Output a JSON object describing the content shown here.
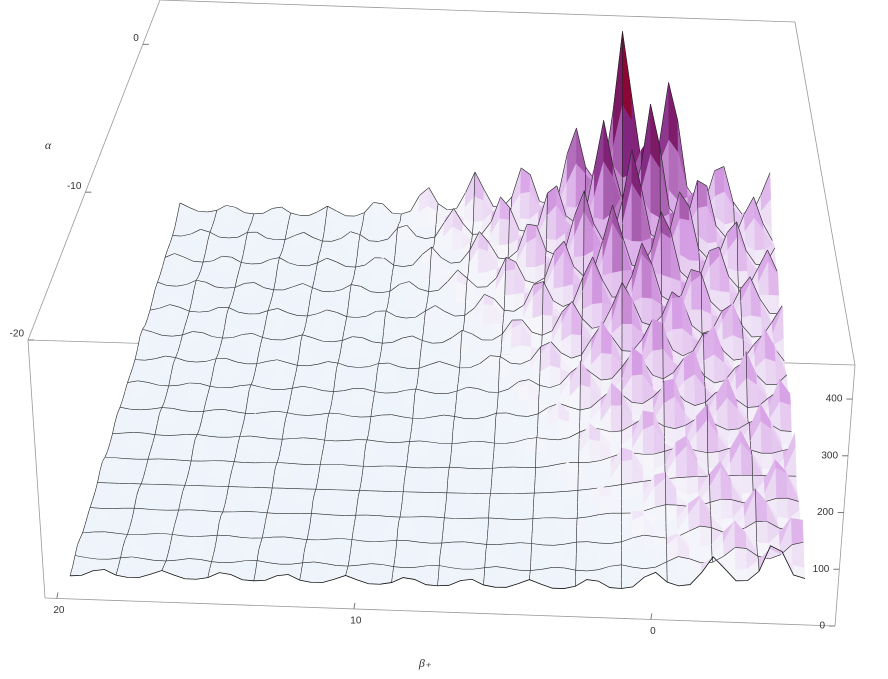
{
  "chart_data": {
    "type": "surface3d",
    "xlabel": "β₊",
    "ylabel": "α",
    "xlim": [
      20.4,
      -6.2
    ],
    "xticks": [
      20,
      10,
      0
    ],
    "ylim": [
      -20,
      3
    ],
    "yticks": [
      0,
      -10,
      -20
    ],
    "zlim": [
      0,
      460
    ],
    "zticks": [
      0,
      100,
      200,
      300,
      400
    ]
  }
}
